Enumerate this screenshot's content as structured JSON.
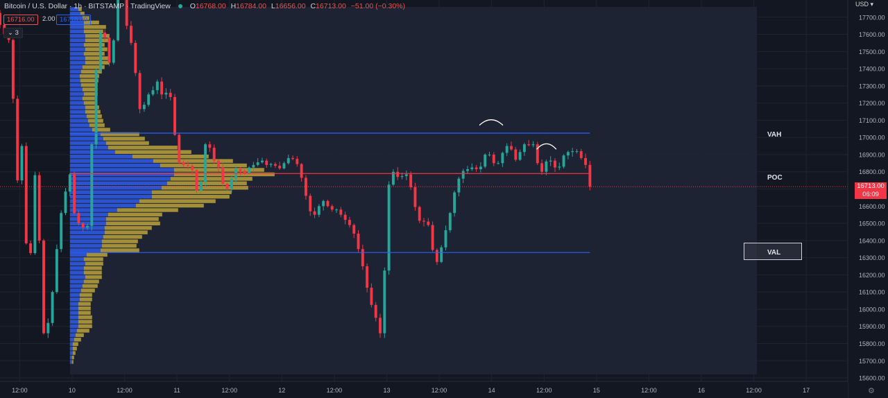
{
  "header": {
    "title": "Bitcoin / U.S. Dollar · 1h · BITSTAMP · TradingView",
    "ohlc": [
      {
        "k": "O",
        "v": "16768.00"
      },
      {
        "k": "H",
        "v": "16784.00"
      },
      {
        "k": "L",
        "v": "16656.00"
      },
      {
        "k": "C",
        "v": "16713.00"
      }
    ],
    "change": "−51.00 (−0.30%)",
    "sell_price": "16716.00",
    "spread": "2.00",
    "buy_price": "16718.00",
    "layers_count": "3",
    "currency": "USD",
    "last_price": "16713.00",
    "countdown": "06:09"
  },
  "levels": {
    "vah": {
      "label": "VAH",
      "price": 17025
    },
    "poc": {
      "label": "POC",
      "price": 16790
    },
    "val": {
      "label": "VAL",
      "price": 16330
    }
  },
  "colors": {
    "up": "#26a69a",
    "down": "#f23645",
    "vah_val_line": "#2962ff",
    "poc_line": "#f23645",
    "vp_up": "#2d56d8",
    "vp_down": "#b39b3a"
  },
  "chart_data": {
    "type": "candlestick",
    "symbol": "BTCUSD",
    "interval": "1h",
    "ylim": [
      15580,
      17800
    ],
    "y_ticks": [
      "15600.00",
      "15700.00",
      "15800.00",
      "15900.00",
      "16000.00",
      "16100.00",
      "16200.00",
      "16300.00",
      "16400.00",
      "16500.00",
      "16600.00",
      "16700.00",
      "16800.00",
      "16900.00",
      "17000.00",
      "17100.00",
      "17200.00",
      "17300.00",
      "17400.00",
      "17500.00",
      "17600.00",
      "17700.00"
    ],
    "x_ticks": [
      "12:00",
      "10",
      "12:00",
      "11",
      "12:00",
      "12",
      "12:00",
      "13",
      "12:00",
      "14",
      "12:00",
      "15",
      "12:00",
      "16",
      "12:00",
      "17"
    ],
    "x_tick_hours": [
      12,
      24,
      36,
      48,
      60,
      72,
      84,
      96,
      108,
      120,
      132,
      144,
      156,
      168,
      180,
      192
    ],
    "x_range_hours": [
      7.5,
      201.5
    ],
    "anchors": [
      [
        6,
        17760
      ],
      [
        8,
        17620
      ],
      [
        10,
        17550
      ],
      [
        11,
        16900
      ],
      [
        12,
        16600
      ],
      [
        12.5,
        16950
      ],
      [
        14,
        16100
      ],
      [
        15.5,
        16780
      ],
      [
        16.5,
        16400
      ],
      [
        17,
        15880
      ],
      [
        18,
        15840
      ],
      [
        19,
        16000
      ],
      [
        20,
        16200
      ],
      [
        21,
        16500
      ],
      [
        22,
        16620
      ],
      [
        23,
        16750
      ],
      [
        24,
        16820
      ],
      [
        25,
        16300
      ],
      [
        26,
        16700
      ],
      [
        27,
        16250
      ],
      [
        28,
        16720
      ],
      [
        29,
        17200
      ],
      [
        30,
        17580
      ],
      [
        31,
        17640
      ],
      [
        32,
        17520
      ],
      [
        33,
        17350
      ],
      [
        34,
        17780
      ],
      [
        35,
        17950
      ],
      [
        36,
        17700
      ],
      [
        37,
        17600
      ],
      [
        38,
        17500
      ],
      [
        39,
        17250
      ],
      [
        40,
        17080
      ],
      [
        41,
        17300
      ],
      [
        42,
        17200
      ],
      [
        43,
        17350
      ],
      [
        44,
        17300
      ],
      [
        45,
        17200
      ],
      [
        46,
        17320
      ],
      [
        47,
        17150
      ],
      [
        48,
        16880
      ],
      [
        49,
        16830
      ],
      [
        50,
        16850
      ],
      [
        51,
        16820
      ],
      [
        52,
        16800
      ],
      [
        53,
        16580
      ],
      [
        54,
        16900
      ],
      [
        55,
        17020
      ],
      [
        56,
        16860
      ],
      [
        57,
        16870
      ],
      [
        58,
        16780
      ],
      [
        59,
        16680
      ],
      [
        60,
        16720
      ],
      [
        61,
        16800
      ],
      [
        62,
        16830
      ],
      [
        63,
        16780
      ],
      [
        64,
        16800
      ],
      [
        65,
        16850
      ],
      [
        66,
        16830
      ],
      [
        67,
        16880
      ],
      [
        68,
        16850
      ],
      [
        69,
        16830
      ],
      [
        70,
        16860
      ],
      [
        71,
        16810
      ],
      [
        72,
        16830
      ],
      [
        73,
        16870
      ],
      [
        74,
        16890
      ],
      [
        75,
        16860
      ],
      [
        76,
        16830
      ],
      [
        77,
        16700
      ],
      [
        78,
        16620
      ],
      [
        79,
        16520
      ],
      [
        80,
        16580
      ],
      [
        81,
        16620
      ],
      [
        82,
        16640
      ],
      [
        83,
        16560
      ],
      [
        84,
        16600
      ],
      [
        85,
        16560
      ],
      [
        86,
        16540
      ],
      [
        87,
        16500
      ],
      [
        88,
        16480
      ],
      [
        89,
        16400
      ],
      [
        90,
        16300
      ],
      [
        91,
        16200
      ],
      [
        92,
        16050
      ],
      [
        93,
        16000
      ],
      [
        94,
        15900
      ],
      [
        95,
        15820
      ],
      [
        96,
        16630
      ],
      [
        97,
        16820
      ],
      [
        98,
        16780
      ],
      [
        99,
        16760
      ],
      [
        100,
        16790
      ],
      [
        101,
        16780
      ],
      [
        102,
        16640
      ],
      [
        103,
        16550
      ],
      [
        104,
        16480
      ],
      [
        105,
        16540
      ],
      [
        106,
        16440
      ],
      [
        107,
        16250
      ],
      [
        108,
        16300
      ],
      [
        109,
        16420
      ],
      [
        110,
        16500
      ],
      [
        111,
        16620
      ],
      [
        112,
        16740
      ],
      [
        113,
        16780
      ],
      [
        114,
        16830
      ],
      [
        115,
        16800
      ],
      [
        116,
        16850
      ],
      [
        117,
        16780
      ],
      [
        118,
        16880
      ],
      [
        119,
        16920
      ],
      [
        120,
        16880
      ],
      [
        121,
        16820
      ],
      [
        122,
        16880
      ],
      [
        123,
        16940
      ],
      [
        124,
        16960
      ],
      [
        125,
        16900
      ],
      [
        126,
        16840
      ],
      [
        127,
        16990
      ],
      [
        128,
        16930
      ],
      [
        129,
        16980
      ],
      [
        130,
        16940
      ],
      [
        131,
        16760
      ],
      [
        132,
        16840
      ],
      [
        133,
        16880
      ],
      [
        134,
        16850
      ],
      [
        135,
        16800
      ],
      [
        136,
        16860
      ],
      [
        137,
        16930
      ],
      [
        138,
        16900
      ],
      [
        139,
        16940
      ],
      [
        140,
        16900
      ],
      [
        141,
        16860
      ],
      [
        142,
        16820
      ],
      [
        142.5,
        16713
      ]
    ],
    "volume_profile": {
      "row_height": 26,
      "rows": [
        {
          "p": 17745,
          "up": 12,
          "dn": 5
        },
        {
          "p": 17719,
          "up": 15,
          "dn": 6
        },
        {
          "p": 17693,
          "up": 18,
          "dn": 10
        },
        {
          "p": 17667,
          "up": 20,
          "dn": 22
        },
        {
          "p": 17641,
          "up": 20,
          "dn": 32
        },
        {
          "p": 17615,
          "up": 20,
          "dn": 28
        },
        {
          "p": 17589,
          "up": 22,
          "dn": 35
        },
        {
          "p": 17563,
          "up": 22,
          "dn": 35
        },
        {
          "p": 17537,
          "up": 20,
          "dn": 30
        },
        {
          "p": 17511,
          "up": 22,
          "dn": 32
        },
        {
          "p": 17485,
          "up": 20,
          "dn": 30
        },
        {
          "p": 17459,
          "up": 22,
          "dn": 34
        },
        {
          "p": 17433,
          "up": 22,
          "dn": 35
        },
        {
          "p": 17407,
          "up": 18,
          "dn": 32
        },
        {
          "p": 17381,
          "up": 16,
          "dn": 30
        },
        {
          "p": 17355,
          "up": 14,
          "dn": 28
        },
        {
          "p": 17329,
          "up": 15,
          "dn": 26
        },
        {
          "p": 17303,
          "up": 16,
          "dn": 24
        },
        {
          "p": 17277,
          "up": 18,
          "dn": 22
        },
        {
          "p": 17251,
          "up": 20,
          "dn": 20
        },
        {
          "p": 17225,
          "up": 18,
          "dn": 18
        },
        {
          "p": 17199,
          "up": 20,
          "dn": 16
        },
        {
          "p": 17173,
          "up": 22,
          "dn": 20
        },
        {
          "p": 17147,
          "up": 22,
          "dn": 22
        },
        {
          "p": 17121,
          "up": 24,
          "dn": 22
        },
        {
          "p": 17095,
          "up": 26,
          "dn": 22
        },
        {
          "p": 17069,
          "up": 28,
          "dn": 22
        },
        {
          "p": 17043,
          "up": 32,
          "dn": 26
        },
        {
          "p": 17017,
          "up": 44,
          "dn": 56
        },
        {
          "p": 16991,
          "up": 48,
          "dn": 60
        },
        {
          "p": 16965,
          "up": 52,
          "dn": 62
        },
        {
          "p": 16939,
          "up": 55,
          "dn": 100
        },
        {
          "p": 16913,
          "up": 65,
          "dn": 110
        },
        {
          "p": 16887,
          "up": 90,
          "dn": 110
        },
        {
          "p": 16861,
          "up": 120,
          "dn": 115
        },
        {
          "p": 16835,
          "up": 130,
          "dn": 125
        },
        {
          "p": 16809,
          "up": 150,
          "dn": 130
        },
        {
          "p": 16783,
          "up": 150,
          "dn": 145
        },
        {
          "p": 16757,
          "up": 145,
          "dn": 118
        },
        {
          "p": 16731,
          "up": 140,
          "dn": 115
        },
        {
          "p": 16705,
          "up": 132,
          "dn": 125
        },
        {
          "p": 16679,
          "up": 118,
          "dn": 115
        },
        {
          "p": 16653,
          "up": 118,
          "dn": 112
        },
        {
          "p": 16627,
          "up": 100,
          "dn": 110
        },
        {
          "p": 16601,
          "up": 95,
          "dn": 98
        },
        {
          "p": 16575,
          "up": 68,
          "dn": 88
        },
        {
          "p": 16549,
          "up": 55,
          "dn": 78
        },
        {
          "p": 16523,
          "up": 52,
          "dn": 76
        },
        {
          "p": 16497,
          "up": 52,
          "dn": 78
        },
        {
          "p": 16471,
          "up": 50,
          "dn": 68
        },
        {
          "p": 16445,
          "up": 50,
          "dn": 62
        },
        {
          "p": 16419,
          "up": 48,
          "dn": 56
        },
        {
          "p": 16393,
          "up": 46,
          "dn": 52
        },
        {
          "p": 16367,
          "up": 46,
          "dn": 50
        },
        {
          "p": 16341,
          "up": 44,
          "dn": 56
        },
        {
          "p": 16315,
          "up": 24,
          "dn": 30
        },
        {
          "p": 16289,
          "up": 20,
          "dn": 28
        },
        {
          "p": 16263,
          "up": 22,
          "dn": 26
        },
        {
          "p": 16237,
          "up": 20,
          "dn": 26
        },
        {
          "p": 16211,
          "up": 20,
          "dn": 26
        },
        {
          "p": 16185,
          "up": 22,
          "dn": 24
        },
        {
          "p": 16159,
          "up": 20,
          "dn": 22
        },
        {
          "p": 16133,
          "up": 18,
          "dn": 22
        },
        {
          "p": 16107,
          "up": 16,
          "dn": 20
        },
        {
          "p": 16081,
          "up": 14,
          "dn": 18
        },
        {
          "p": 16055,
          "up": 14,
          "dn": 18
        },
        {
          "p": 16029,
          "up": 12,
          "dn": 18
        },
        {
          "p": 16003,
          "up": 12,
          "dn": 18
        },
        {
          "p": 15977,
          "up": 12,
          "dn": 18
        },
        {
          "p": 15951,
          "up": 12,
          "dn": 20
        },
        {
          "p": 15925,
          "up": 12,
          "dn": 20
        },
        {
          "p": 15899,
          "up": 12,
          "dn": 20
        },
        {
          "p": 15873,
          "up": 10,
          "dn": 18
        },
        {
          "p": 15847,
          "up": 8,
          "dn": 12
        },
        {
          "p": 15821,
          "up": 6,
          "dn": 10
        },
        {
          "p": 15795,
          "up": 4,
          "dn": 8
        },
        {
          "p": 15769,
          "up": 4,
          "dn": 6
        },
        {
          "p": 15743,
          "up": 4,
          "dn": 4
        },
        {
          "p": 15717,
          "up": 3,
          "dn": 3
        },
        {
          "p": 15691,
          "up": 3,
          "dn": 2
        }
      ]
    },
    "top_arcs": [
      {
        "x_from": 117.2,
        "x_to": 122.6,
        "price": 17095
      },
      {
        "x_from": 130.3,
        "x_to": 134.8,
        "price": 16955
      }
    ]
  }
}
